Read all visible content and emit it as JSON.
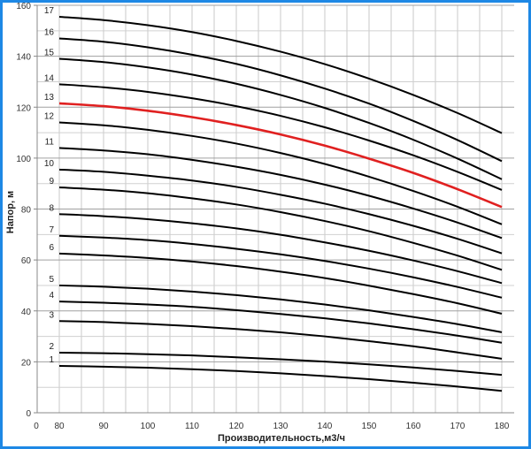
{
  "chart_data": {
    "type": "line",
    "xlabel": "Производительность,м3/ч",
    "ylabel": "Напор, м",
    "xlim": [
      80,
      180
    ],
    "ylim": [
      0,
      160
    ],
    "origin_label": "0",
    "x_ticks": [
      80,
      90,
      100,
      110,
      120,
      130,
      140,
      150,
      160,
      170,
      180
    ],
    "y_ticks": [
      0,
      20,
      40,
      60,
      80,
      100,
      120,
      140,
      160
    ],
    "grid": true,
    "highlight_color": "#e02020",
    "line_color": "#000000",
    "x": [
      80,
      90,
      100,
      110,
      120,
      130,
      140,
      150,
      160,
      170,
      180
    ],
    "series": [
      {
        "name": "1",
        "values": [
          18.4,
          18.1,
          17.7,
          17.1,
          16.4,
          15.5,
          14.4,
          13.2,
          11.8,
          10.3,
          8.6
        ]
      },
      {
        "name": "2",
        "values": [
          23.6,
          23.4,
          23.0,
          22.5,
          21.8,
          21.0,
          20.1,
          19.0,
          17.8,
          16.4,
          14.9
        ]
      },
      {
        "name": "3",
        "values": [
          36.0,
          35.6,
          34.9,
          34.0,
          32.9,
          31.6,
          30.0,
          28.1,
          26.1,
          23.7,
          21.2
        ]
      },
      {
        "name": "4",
        "values": [
          43.7,
          43.2,
          42.5,
          41.6,
          40.3,
          38.8,
          37.1,
          35.1,
          32.8,
          30.3,
          27.5
        ]
      },
      {
        "name": "5",
        "values": [
          50.0,
          49.5,
          48.7,
          47.6,
          46.2,
          44.5,
          42.5,
          40.2,
          37.6,
          34.8,
          31.6
        ]
      },
      {
        "name": "6",
        "values": [
          62.5,
          61.8,
          60.8,
          59.4,
          57.6,
          55.4,
          52.9,
          49.9,
          46.6,
          43.0,
          38.9
        ]
      },
      {
        "name": "7",
        "values": [
          69.5,
          68.8,
          67.8,
          66.3,
          64.4,
          62.2,
          59.6,
          56.6,
          53.2,
          49.4,
          45.2
        ]
      },
      {
        "name": "8",
        "values": [
          78.0,
          77.2,
          76.0,
          74.4,
          72.4,
          69.9,
          66.9,
          63.6,
          59.8,
          55.6,
          50.9
        ]
      },
      {
        "name": "9",
        "values": [
          88.5,
          87.6,
          86.2,
          84.2,
          81.8,
          78.8,
          75.3,
          71.3,
          66.7,
          61.7,
          56.1
        ]
      },
      {
        "name": "10",
        "values": [
          95.5,
          94.6,
          93.1,
          91.2,
          88.7,
          85.6,
          82.1,
          78.0,
          73.4,
          68.3,
          62.6
        ]
      },
      {
        "name": "11",
        "values": [
          104.0,
          103.0,
          101.5,
          99.3,
          96.6,
          93.4,
          89.6,
          85.2,
          80.2,
          74.7,
          68.6
        ]
      },
      {
        "name": "12",
        "values": [
          114.0,
          112.9,
          111.1,
          108.7,
          105.7,
          102.0,
          97.7,
          92.7,
          87.1,
          80.9,
          74.0
        ]
      },
      {
        "name": "13",
        "values": [
          121.5,
          120.4,
          118.6,
          116.1,
          113.0,
          109.3,
          104.9,
          99.8,
          94.2,
          87.8,
          80.8
        ],
        "highlight": true
      },
      {
        "name": "14",
        "values": [
          129.0,
          127.8,
          126.0,
          123.5,
          120.4,
          116.6,
          112.1,
          106.9,
          101.1,
          94.6,
          87.5
        ]
      },
      {
        "name": "15",
        "values": [
          139.0,
          137.7,
          135.6,
          132.8,
          129.2,
          124.8,
          119.7,
          113.8,
          107.2,
          99.8,
          91.7
        ]
      },
      {
        "name": "16",
        "values": [
          147.0,
          145.7,
          143.5,
          140.6,
          137.0,
          132.5,
          127.3,
          121.4,
          114.6,
          107.1,
          98.8
        ]
      },
      {
        "name": "17",
        "values": [
          155.5,
          154.2,
          152.2,
          149.5,
          146.0,
          141.8,
          136.9,
          131.2,
          124.8,
          117.7,
          109.8
        ]
      }
    ]
  }
}
